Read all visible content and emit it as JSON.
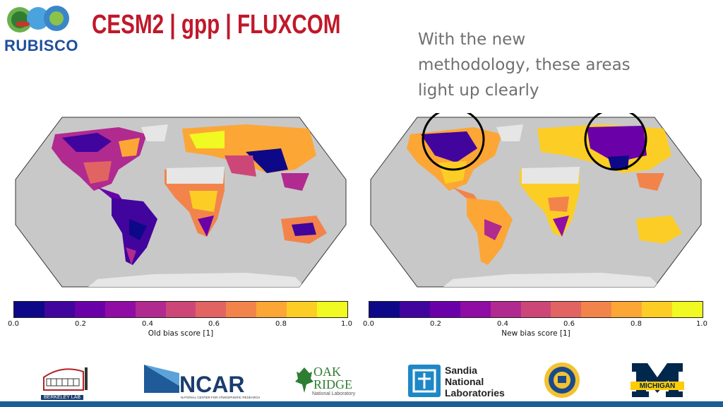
{
  "header": {
    "logo_text": "RUBISCO",
    "title": "CESM2 | gpp | FLUXCOM"
  },
  "annotation": {
    "lines": [
      "With the new",
      "methodology, these areas",
      "light up clearly"
    ]
  },
  "colorbar_colors": [
    "#0d0887",
    "#41049d",
    "#6a00a8",
    "#8f0da4",
    "#b12a90",
    "#cc4778",
    "#e16462",
    "#f2844b",
    "#fca636",
    "#fcce25",
    "#f0f921"
  ],
  "colorbars": [
    {
      "ticks": [
        "0.0",
        "0.2",
        "0.4",
        "0.6",
        "0.8",
        "1.0"
      ],
      "label": "Old bias score [1]"
    },
    {
      "ticks": [
        "0.0",
        "0.2",
        "0.4",
        "0.6",
        "0.8",
        "1.0"
      ],
      "label": "New bias score [1]"
    }
  ],
  "partners": {
    "berkeley": "BERKELEY LAB",
    "ncar": "NCAR",
    "ncar_sub": "NATIONAL CENTER FOR ATMOSPHERIC RESEARCH",
    "ornl_1": "OAK",
    "ornl_2": "RIDGE",
    "ornl_3": "National Laboratory",
    "sandia_1": "Sandia",
    "sandia_2": "National",
    "sandia_3": "Laboratories",
    "michigan": "MICHIGAN"
  }
}
